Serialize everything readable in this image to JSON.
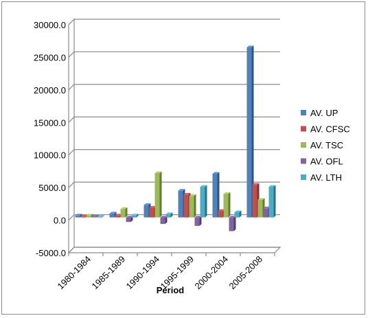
{
  "chart_data": {
    "type": "bar",
    "title": "",
    "xlabel": "Period",
    "ylabel": "",
    "categories": [
      "1980-1984",
      "1985-1989",
      "1990-1994",
      "1995-1999",
      "2000-2004",
      "2005-2008"
    ],
    "ylim": [
      -5000,
      30000
    ],
    "y_ticks": [
      -5000,
      0,
      5000,
      10000,
      15000,
      20000,
      25000,
      30000
    ],
    "y_tick_labels": [
      "-5000.0",
      "0.0",
      "5000.0",
      "10000.0",
      "15000.0",
      "20000.0",
      "25000.0",
      "30000.0"
    ],
    "grid": true,
    "style": "3d-clustered-column",
    "legend_position": "right",
    "series": [
      {
        "name": "AV. UP",
        "color": "#4F81BD",
        "values": [
          300,
          600,
          1900,
          4100,
          6700,
          26100
        ]
      },
      {
        "name": "AV. CFSC",
        "color": "#C0504D",
        "values": [
          150,
          300,
          1500,
          3500,
          1000,
          5000
        ]
      },
      {
        "name": "AV. TSC",
        "color": "#9BBB59",
        "values": [
          300,
          1300,
          6800,
          3300,
          3600,
          2700
        ]
      },
      {
        "name": "AV. OFL",
        "color": "#8064A2",
        "values": [
          150,
          -700,
          -1000,
          -1300,
          -2100,
          1400
        ]
      },
      {
        "name": "AV. LTH",
        "color": "#4BACC6",
        "values": [
          100,
          300,
          500,
          4700,
          800,
          4700
        ]
      }
    ]
  }
}
